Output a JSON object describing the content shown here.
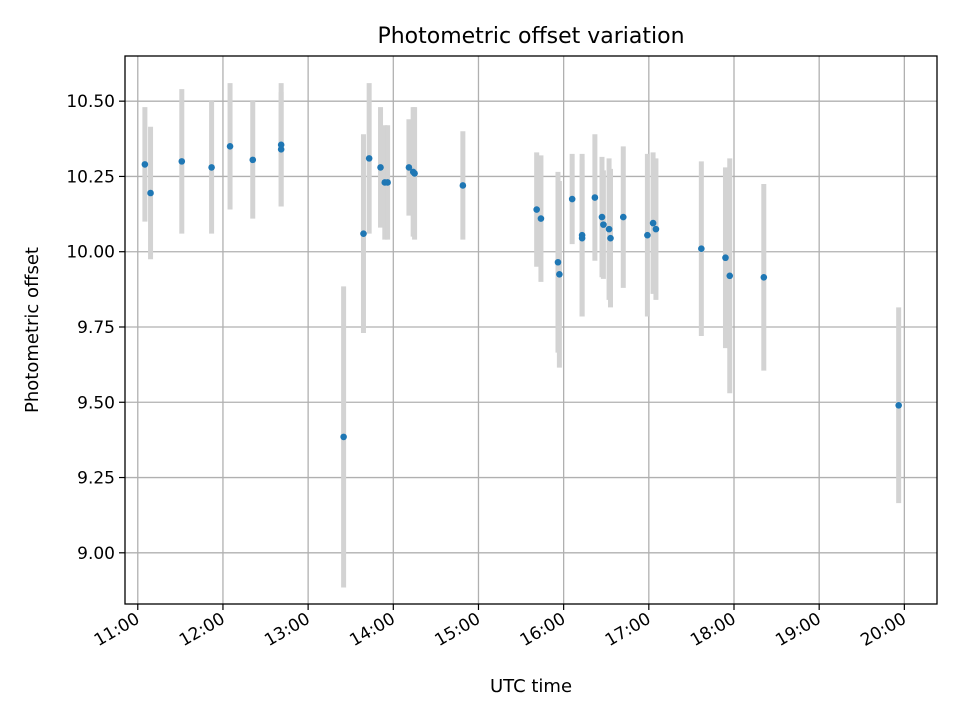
{
  "chart_data": {
    "type": "scatter",
    "title": "Photometric offset variation",
    "xlabel": "UTC time",
    "ylabel": "Photometric offset",
    "x_unit": "UTC time (HH:MM)",
    "xlim": [
      "10:51",
      "20:23"
    ],
    "ylim": [
      8.83,
      10.65
    ],
    "grid": true,
    "xticks": [
      "11:00",
      "12:00",
      "13:00",
      "14:00",
      "15:00",
      "16:00",
      "17:00",
      "18:00",
      "19:00",
      "20:00"
    ],
    "yticks": [
      "9.00",
      "9.25",
      "9.50",
      "9.75",
      "10.00",
      "10.25",
      "10.50"
    ],
    "marker_color": "#1f77b4",
    "errorbar_color": "#d3d3d3",
    "points": [
      {
        "x": "11:05",
        "y": 10.29,
        "err": 0.19
      },
      {
        "x": "11:09",
        "y": 10.195,
        "err": 0.22
      },
      {
        "x": "11:31",
        "y": 10.3,
        "err": 0.24
      },
      {
        "x": "11:52",
        "y": 10.28,
        "err": 0.22
      },
      {
        "x": "12:05",
        "y": 10.35,
        "err": 0.21
      },
      {
        "x": "12:21",
        "y": 10.305,
        "err": 0.195
      },
      {
        "x": "12:41",
        "y": 10.34,
        "err": 0.19
      },
      {
        "x": "12:41",
        "y": 10.355,
        "err": 0.205
      },
      {
        "x": "13:25",
        "y": 9.385,
        "err": 0.5
      },
      {
        "x": "13:39",
        "y": 10.06,
        "err": 0.33
      },
      {
        "x": "13:43",
        "y": 10.31,
        "err": 0.25
      },
      {
        "x": "13:51",
        "y": 10.28,
        "err": 0.2
      },
      {
        "x": "13:54",
        "y": 10.23,
        "err": 0.19
      },
      {
        "x": "13:56",
        "y": 10.23,
        "err": 0.19
      },
      {
        "x": "14:11",
        "y": 10.28,
        "err": 0.16
      },
      {
        "x": "14:14",
        "y": 10.265,
        "err": 0.215
      },
      {
        "x": "14:15",
        "y": 10.26,
        "err": 0.22
      },
      {
        "x": "14:49",
        "y": 10.22,
        "err": 0.18
      },
      {
        "x": "15:41",
        "y": 10.14,
        "err": 0.19
      },
      {
        "x": "15:44",
        "y": 10.11,
        "err": 0.21
      },
      {
        "x": "15:56",
        "y": 9.965,
        "err": 0.3
      },
      {
        "x": "15:57",
        "y": 9.925,
        "err": 0.31
      },
      {
        "x": "16:06",
        "y": 10.175,
        "err": 0.15
      },
      {
        "x": "16:13",
        "y": 10.055,
        "err": 0.27
      },
      {
        "x": "16:13",
        "y": 10.045,
        "err": 0.26
      },
      {
        "x": "16:22",
        "y": 10.18,
        "err": 0.21
      },
      {
        "x": "16:27",
        "y": 10.115,
        "err": 0.2
      },
      {
        "x": "16:28",
        "y": 10.09,
        "err": 0.18
      },
      {
        "x": "16:32",
        "y": 10.075,
        "err": 0.235
      },
      {
        "x": "16:33",
        "y": 10.045,
        "err": 0.23
      },
      {
        "x": "16:42",
        "y": 10.115,
        "err": 0.235
      },
      {
        "x": "16:59",
        "y": 10.055,
        "err": 0.27
      },
      {
        "x": "17:03",
        "y": 10.095,
        "err": 0.235
      },
      {
        "x": "17:05",
        "y": 10.075,
        "err": 0.235
      },
      {
        "x": "17:37",
        "y": 10.01,
        "err": 0.29
      },
      {
        "x": "17:54",
        "y": 9.98,
        "err": 0.3
      },
      {
        "x": "17:57",
        "y": 9.92,
        "err": 0.39
      },
      {
        "x": "18:21",
        "y": 9.915,
        "err": 0.31
      },
      {
        "x": "19:56",
        "y": 9.49,
        "err": 0.325
      }
    ]
  }
}
